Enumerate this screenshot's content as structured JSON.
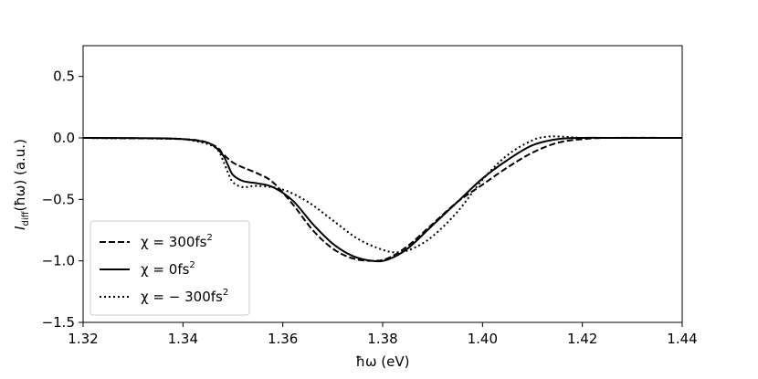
{
  "chart_data": {
    "type": "line",
    "xlabel": "ħω (eV)",
    "ylabel_main": "I",
    "ylabel_sub": "diff",
    "ylabel_rest": "(ħω) (a.u.)",
    "xlim": [
      1.32,
      1.44
    ],
    "ylim": [
      -1.5,
      0.75
    ],
    "xticks": [
      1.32,
      1.34,
      1.36,
      1.38,
      1.4,
      1.42,
      1.44
    ],
    "xtick_labels": [
      "1.32",
      "1.34",
      "1.36",
      "1.38",
      "1.40",
      "1.42",
      "1.44"
    ],
    "yticks": [
      -1.5,
      -1.0,
      -0.5,
      0.0,
      0.5
    ],
    "ytick_labels": [
      "−1.5",
      "−1.0",
      "−0.5",
      "0.0",
      "0.5"
    ],
    "grid": false,
    "legend_position": "lower-left",
    "series": [
      {
        "name_main": "χ = 300fs",
        "name_sup": "2",
        "style": "dashed",
        "color": "#000000",
        "x": [
          1.32,
          1.335,
          1.34,
          1.343,
          1.345,
          1.347,
          1.348,
          1.35,
          1.352,
          1.355,
          1.358,
          1.362,
          1.366,
          1.37,
          1.374,
          1.378,
          1.381,
          1.385,
          1.39,
          1.395,
          1.4,
          1.405,
          1.41,
          1.415,
          1.42,
          1.425,
          1.44
        ],
        "values": [
          0.0,
          -0.005,
          -0.01,
          -0.02,
          -0.04,
          -0.08,
          -0.13,
          -0.2,
          -0.24,
          -0.29,
          -0.36,
          -0.54,
          -0.75,
          -0.9,
          -0.98,
          -1.0,
          -0.98,
          -0.88,
          -0.7,
          -0.52,
          -0.38,
          -0.24,
          -0.12,
          -0.04,
          -0.01,
          0.0,
          0.0
        ]
      },
      {
        "name_main": "χ = 0fs",
        "name_sup": "2",
        "style": "solid",
        "color": "#000000",
        "x": [
          1.32,
          1.335,
          1.34,
          1.344,
          1.346,
          1.348,
          1.349,
          1.35,
          1.352,
          1.355,
          1.358,
          1.362,
          1.366,
          1.37,
          1.374,
          1.378,
          1.381,
          1.385,
          1.39,
          1.395,
          1.4,
          1.405,
          1.41,
          1.415,
          1.42,
          1.425,
          1.44
        ],
        "values": [
          0.0,
          -0.003,
          -0.01,
          -0.03,
          -0.06,
          -0.14,
          -0.22,
          -0.3,
          -0.35,
          -0.37,
          -0.4,
          -0.51,
          -0.7,
          -0.86,
          -0.96,
          -1.0,
          -0.99,
          -0.9,
          -0.71,
          -0.52,
          -0.33,
          -0.18,
          -0.06,
          -0.01,
          0.0,
          0.0,
          0.0
        ]
      },
      {
        "name_main": "χ = − 300fs",
        "name_sup": "2",
        "style": "dotted",
        "color": "#000000",
        "x": [
          1.32,
          1.335,
          1.34,
          1.345,
          1.347,
          1.348,
          1.349,
          1.35,
          1.352,
          1.355,
          1.36,
          1.365,
          1.37,
          1.375,
          1.38,
          1.383,
          1.386,
          1.39,
          1.395,
          1.4,
          1.405,
          1.41,
          1.413,
          1.416,
          1.42,
          1.425,
          1.44
        ],
        "values": [
          0.0,
          -0.005,
          -0.01,
          -0.05,
          -0.1,
          -0.18,
          -0.28,
          -0.36,
          -0.4,
          -0.39,
          -0.42,
          -0.52,
          -0.67,
          -0.82,
          -0.91,
          -0.93,
          -0.9,
          -0.8,
          -0.6,
          -0.34,
          -0.14,
          -0.02,
          0.01,
          0.01,
          0.0,
          0.0,
          0.0
        ]
      }
    ]
  }
}
